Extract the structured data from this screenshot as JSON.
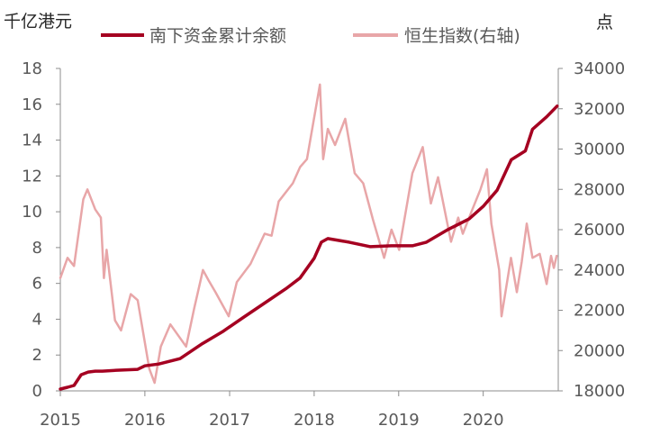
{
  "chart_data": {
    "type": "line",
    "title": "",
    "left_unit": "千亿港元",
    "right_unit": "点",
    "x_tick_labels": [
      "2015",
      "2016",
      "2017",
      "2018",
      "2019",
      "2020"
    ],
    "y_left": {
      "range": [
        0,
        18
      ],
      "ticks": [
        0,
        2,
        4,
        6,
        8,
        10,
        12,
        14,
        16,
        18
      ],
      "tick_labels": [
        "0",
        "2",
        "4",
        "6",
        "8",
        "10",
        "12",
        "14",
        "16",
        "18"
      ]
    },
    "y_right": {
      "range": [
        18000,
        34000
      ],
      "ticks": [
        18000,
        20000,
        22000,
        24000,
        26000,
        28000,
        30000,
        32000,
        34000
      ],
      "tick_labels": [
        "18000",
        "20000",
        "22000",
        "24000",
        "26000",
        "28000",
        "30000",
        "32000",
        "34000"
      ]
    },
    "grid": false,
    "legend_position": "top",
    "series": [
      {
        "name": "南下资金累计余额",
        "axis": "left",
        "color": "#A50021",
        "points": [
          [
            "2015-01-01",
            0.1
          ],
          [
            "2015-02-01",
            0.2
          ],
          [
            "2015-03-01",
            0.3
          ],
          [
            "2015-04-01",
            0.9
          ],
          [
            "2015-05-01",
            1.05
          ],
          [
            "2015-06-01",
            1.1
          ],
          [
            "2015-07-01",
            1.1
          ],
          [
            "2015-09-01",
            1.15
          ],
          [
            "2015-12-01",
            1.2
          ],
          [
            "2016-01-01",
            1.4
          ],
          [
            "2016-03-01",
            1.5
          ],
          [
            "2016-06-01",
            1.8
          ],
          [
            "2016-09-01",
            2.6
          ],
          [
            "2016-12-01",
            3.3
          ],
          [
            "2017-03-01",
            4.1
          ],
          [
            "2017-06-01",
            4.9
          ],
          [
            "2017-09-01",
            5.7
          ],
          [
            "2017-11-01",
            6.3
          ],
          [
            "2018-01-01",
            7.4
          ],
          [
            "2018-02-01",
            8.3
          ],
          [
            "2018-03-01",
            8.5
          ],
          [
            "2018-06-01",
            8.3
          ],
          [
            "2018-09-01",
            8.05
          ],
          [
            "2018-12-01",
            8.1
          ],
          [
            "2019-03-01",
            8.1
          ],
          [
            "2019-05-01",
            8.3
          ],
          [
            "2019-08-01",
            9.0
          ],
          [
            "2019-11-01",
            9.6
          ],
          [
            "2020-01-01",
            10.3
          ],
          [
            "2020-03-01",
            11.2
          ],
          [
            "2020-05-01",
            12.9
          ],
          [
            "2020-07-01",
            13.4
          ],
          [
            "2020-08-01",
            14.6
          ],
          [
            "2020-10-01",
            15.3
          ],
          [
            "2020-11-15",
            15.9
          ]
        ]
      },
      {
        "name": "恒生指数(右轴)",
        "axis": "right",
        "color": "#E8A6A8",
        "points": [
          [
            "2015-01-01",
            23600
          ],
          [
            "2015-02-01",
            24600
          ],
          [
            "2015-03-01",
            24200
          ],
          [
            "2015-04-10",
            27500
          ],
          [
            "2015-04-28",
            28000
          ],
          [
            "2015-06-01",
            27000
          ],
          [
            "2015-06-25",
            26600
          ],
          [
            "2015-07-08",
            23600
          ],
          [
            "2015-07-20",
            25000
          ],
          [
            "2015-08-25",
            21500
          ],
          [
            "2015-09-20",
            21000
          ],
          [
            "2015-11-01",
            22800
          ],
          [
            "2015-12-01",
            22500
          ],
          [
            "2016-01-20",
            19100
          ],
          [
            "2016-02-12",
            18400
          ],
          [
            "2016-03-10",
            20200
          ],
          [
            "2016-04-20",
            21300
          ],
          [
            "2016-06-27",
            20200
          ],
          [
            "2016-08-01",
            22100
          ],
          [
            "2016-09-08",
            24000
          ],
          [
            "2016-10-01",
            23500
          ],
          [
            "2016-11-01",
            22900
          ],
          [
            "2016-12-28",
            21700
          ],
          [
            "2017-02-01",
            23400
          ],
          [
            "2017-04-01",
            24300
          ],
          [
            "2017-06-01",
            25800
          ],
          [
            "2017-07-01",
            25700
          ],
          [
            "2017-08-01",
            27400
          ],
          [
            "2017-10-01",
            28300
          ],
          [
            "2017-11-01",
            29100
          ],
          [
            "2017-12-01",
            29500
          ],
          [
            "2018-01-26",
            33200
          ],
          [
            "2018-02-09",
            29500
          ],
          [
            "2018-03-01",
            31000
          ],
          [
            "2018-04-01",
            30200
          ],
          [
            "2018-05-15",
            31500
          ],
          [
            "2018-06-25",
            28800
          ],
          [
            "2018-08-01",
            28300
          ],
          [
            "2018-09-12",
            26500
          ],
          [
            "2018-10-30",
            24600
          ],
          [
            "2018-12-01",
            26000
          ],
          [
            "2019-01-03",
            25000
          ],
          [
            "2019-03-01",
            28800
          ],
          [
            "2019-04-15",
            30100
          ],
          [
            "2019-05-20",
            27300
          ],
          [
            "2019-06-20",
            28600
          ],
          [
            "2019-08-15",
            25400
          ],
          [
            "2019-09-15",
            26600
          ],
          [
            "2019-10-05",
            25800
          ],
          [
            "2019-11-15",
            27000
          ],
          [
            "2019-12-20",
            28000
          ],
          [
            "2020-01-17",
            29000
          ],
          [
            "2020-02-05",
            26300
          ],
          [
            "2020-03-10",
            24000
          ],
          [
            "2020-03-20",
            21700
          ],
          [
            "2020-04-30",
            24600
          ],
          [
            "2020-05-25",
            22900
          ],
          [
            "2020-06-15",
            24400
          ],
          [
            "2020-07-07",
            26300
          ],
          [
            "2020-08-01",
            24600
          ],
          [
            "2020-09-01",
            24800
          ],
          [
            "2020-10-01",
            23300
          ],
          [
            "2020-10-20",
            24700
          ],
          [
            "2020-11-01",
            24100
          ],
          [
            "2020-11-13",
            24700
          ]
        ]
      }
    ]
  }
}
